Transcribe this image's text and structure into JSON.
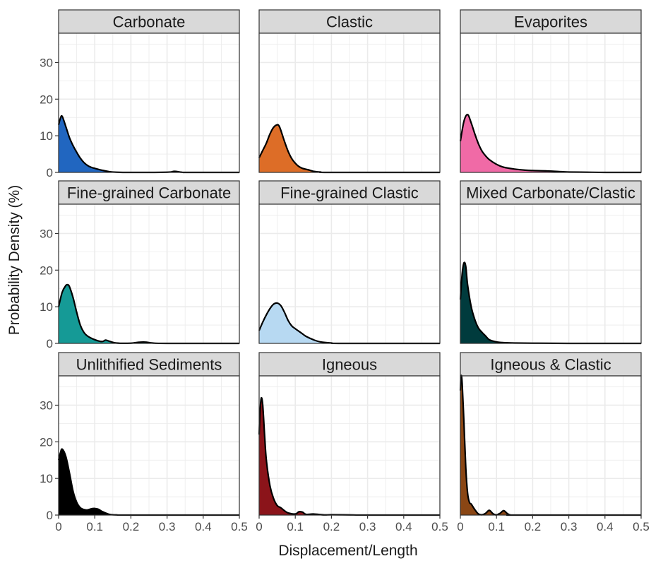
{
  "chart_data": {
    "type": "area",
    "xlabel": "Displacement/Length",
    "ylabel": "Probability Density (%)",
    "xlim": [
      0,
      0.5
    ],
    "ylim": [
      0,
      38
    ],
    "x_ticks": [
      "0",
      "0.1",
      "0.2",
      "0.3",
      "0.4",
      "0.5"
    ],
    "x_tick_values": [
      0,
      0.1,
      0.2,
      0.3,
      0.4,
      0.5
    ],
    "y_ticks": [
      "0",
      "10",
      "20",
      "30"
    ],
    "y_tick_values": [
      0,
      10,
      20,
      30
    ],
    "grid": true,
    "panel_background": "#ffffff",
    "grid_color": "#ebebeb",
    "strip_background": "#d9d9d9",
    "outline_color": "#000000",
    "panels": [
      {
        "name": "Carbonate",
        "color": "#2166c0",
        "x": [
          0,
          0.005,
          0.01,
          0.02,
          0.03,
          0.04,
          0.05,
          0.06,
          0.07,
          0.08,
          0.09,
          0.1,
          0.12,
          0.14,
          0.16,
          0.2,
          0.3,
          0.32,
          0.34,
          0.36,
          0.5
        ],
        "y": [
          13,
          14.8,
          15.3,
          12.5,
          9.5,
          7.3,
          5.5,
          3.9,
          2.7,
          1.9,
          1.4,
          1.1,
          0.6,
          0.2,
          0.05,
          0,
          0.05,
          0.3,
          0.05,
          0,
          0
        ]
      },
      {
        "name": "Clastic",
        "color": "#dd6d27",
        "x": [
          0,
          0.01,
          0.02,
          0.03,
          0.04,
          0.05,
          0.055,
          0.06,
          0.07,
          0.08,
          0.09,
          0.1,
          0.11,
          0.12,
          0.14,
          0.15,
          0.17,
          0.2,
          0.5
        ],
        "y": [
          4,
          6,
          8,
          10.5,
          12.3,
          13,
          12.7,
          11.5,
          8.5,
          5.8,
          3.8,
          2.5,
          1.6,
          1.1,
          0.6,
          0.3,
          0.1,
          0,
          0
        ]
      },
      {
        "name": "Evaporites",
        "color": "#f06aa6",
        "x": [
          0,
          0.01,
          0.02,
          0.03,
          0.04,
          0.05,
          0.06,
          0.07,
          0.08,
          0.1,
          0.12,
          0.15,
          0.18,
          0.2,
          0.24,
          0.28,
          0.3,
          0.35,
          0.4,
          0.5
        ],
        "y": [
          8.5,
          14,
          15.8,
          13.5,
          10.5,
          7.8,
          5.8,
          4.5,
          3.5,
          2.2,
          1.4,
          0.9,
          0.6,
          0.5,
          0.4,
          0.2,
          0.1,
          0.05,
          0,
          0
        ]
      },
      {
        "name": "Fine-grained Carbonate",
        "color": "#159a96",
        "x": [
          0,
          0.01,
          0.02,
          0.025,
          0.03,
          0.04,
          0.05,
          0.06,
          0.07,
          0.08,
          0.1,
          0.12,
          0.13,
          0.14,
          0.16,
          0.2,
          0.22,
          0.24,
          0.26,
          0.3,
          0.5
        ],
        "y": [
          10,
          14,
          15.8,
          16,
          15.5,
          12.5,
          8.5,
          5,
          3,
          2,
          1,
          0.5,
          0.9,
          0.6,
          0.1,
          0.05,
          0.3,
          0.35,
          0.1,
          0,
          0
        ]
      },
      {
        "name": "Fine-grained Clastic",
        "color": "#b7d9f2",
        "x": [
          0,
          0.01,
          0.02,
          0.03,
          0.04,
          0.05,
          0.06,
          0.07,
          0.08,
          0.09,
          0.1,
          0.11,
          0.12,
          0.13,
          0.15,
          0.17,
          0.2,
          0.23,
          0.5
        ],
        "y": [
          3.5,
          5.8,
          7.8,
          9.5,
          10.7,
          11,
          10.3,
          8.5,
          6.3,
          4.8,
          4,
          3.3,
          2.6,
          1.9,
          1,
          0.4,
          0.1,
          0,
          0
        ]
      },
      {
        "name": "Mixed Carbonate/Clastic",
        "color": "#003b3d",
        "x": [
          0,
          0.005,
          0.01,
          0.015,
          0.02,
          0.03,
          0.04,
          0.05,
          0.06,
          0.07,
          0.08,
          0.1,
          0.12,
          0.15,
          0.2,
          0.3,
          0.5
        ],
        "y": [
          12,
          19,
          22,
          21,
          16,
          10,
          6.5,
          4.2,
          3,
          2,
          1,
          0.4,
          0.2,
          0.1,
          0.05,
          0,
          0
        ]
      },
      {
        "name": "Unlithified Sediments",
        "color": "#000000",
        "x": [
          0,
          0.005,
          0.01,
          0.02,
          0.03,
          0.04,
          0.05,
          0.06,
          0.07,
          0.08,
          0.09,
          0.1,
          0.11,
          0.12,
          0.14,
          0.16,
          0.2,
          0.5
        ],
        "y": [
          15,
          17,
          18,
          16,
          11.5,
          6.5,
          3.5,
          2,
          1.5,
          1.4,
          1.7,
          1.8,
          1.6,
          1,
          0.2,
          0.05,
          0,
          0
        ]
      },
      {
        "name": "Igneous",
        "color": "#8b141a",
        "x": [
          0,
          0.003,
          0.006,
          0.01,
          0.015,
          0.02,
          0.03,
          0.04,
          0.05,
          0.06,
          0.07,
          0.08,
          0.1,
          0.11,
          0.12,
          0.13,
          0.15,
          0.18,
          0.2,
          0.25,
          0.3,
          0.5
        ],
        "y": [
          22,
          29,
          32,
          30,
          22,
          15,
          8,
          4.5,
          2.6,
          2,
          1.2,
          0.6,
          0.3,
          0.9,
          0.8,
          0.2,
          0.3,
          0.05,
          0.1,
          0.05,
          0,
          0
        ]
      },
      {
        "name": "Igneous & Clastic",
        "color": "#8a4614",
        "x": [
          0,
          0.002,
          0.005,
          0.01,
          0.015,
          0.02,
          0.025,
          0.03,
          0.04,
          0.05,
          0.06,
          0.07,
          0.08,
          0.09,
          0.1,
          0.11,
          0.12,
          0.13,
          0.14,
          0.16,
          0.5
        ],
        "y": [
          34,
          38,
          36,
          25,
          13,
          6,
          3.5,
          3,
          1.5,
          0.3,
          0.1,
          0.5,
          1.3,
          0.4,
          0.05,
          0.5,
          1.2,
          0.4,
          0,
          0,
          0
        ]
      }
    ]
  }
}
